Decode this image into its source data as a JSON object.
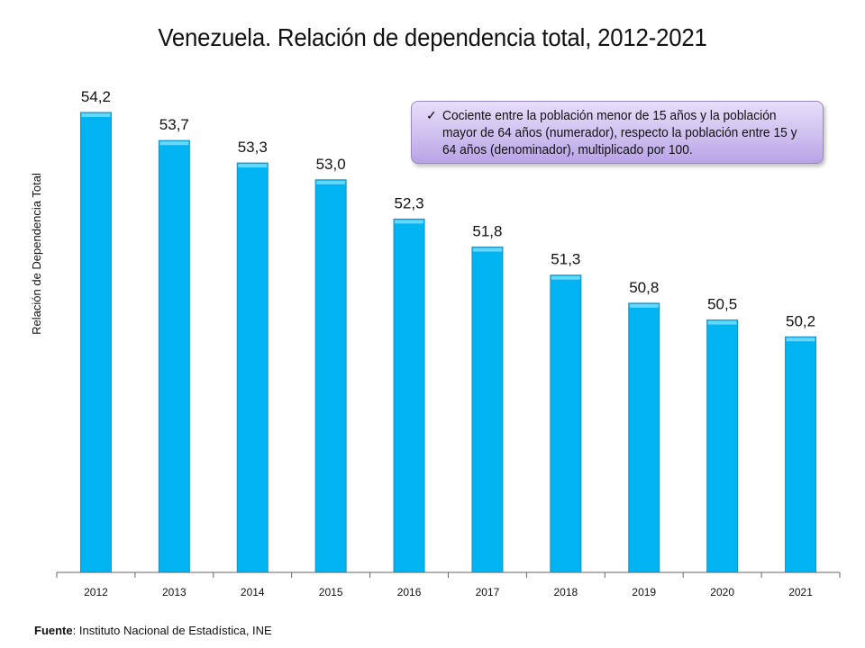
{
  "chart_data": {
    "type": "bar",
    "title": "Venezuela. Relación de dependencia total, 2012-2021",
    "xlabel": "",
    "ylabel": "Relación de Dependencia Total",
    "categories": [
      "2012",
      "2013",
      "2014",
      "2015",
      "2016",
      "2017",
      "2018",
      "2019",
      "2020",
      "2021"
    ],
    "values": [
      54.2,
      53.7,
      53.3,
      53.0,
      52.3,
      51.8,
      51.3,
      50.8,
      50.5,
      50.2
    ],
    "value_labels": [
      "54,2",
      "53,7",
      "53,3",
      "53,0",
      "52,3",
      "51,8",
      "51,3",
      "50,8",
      "50,5",
      "50,2"
    ],
    "ylim": [
      46.0,
      54.2
    ],
    "grid": false,
    "bar_color": "#00b4f2",
    "bar_edge_color": "#1a8fc4",
    "annotation": {
      "check": "✓",
      "text": "Cociente entre la población menor de 15 años y la población mayor de 64 años (numerador), respecto la población entre 15 y 64 años (denominador), multiplicado por 100.",
      "placement": "top-right"
    }
  },
  "source": {
    "label": "Fuente",
    "text": ": Instituto Nacional de Estadística, INE"
  }
}
